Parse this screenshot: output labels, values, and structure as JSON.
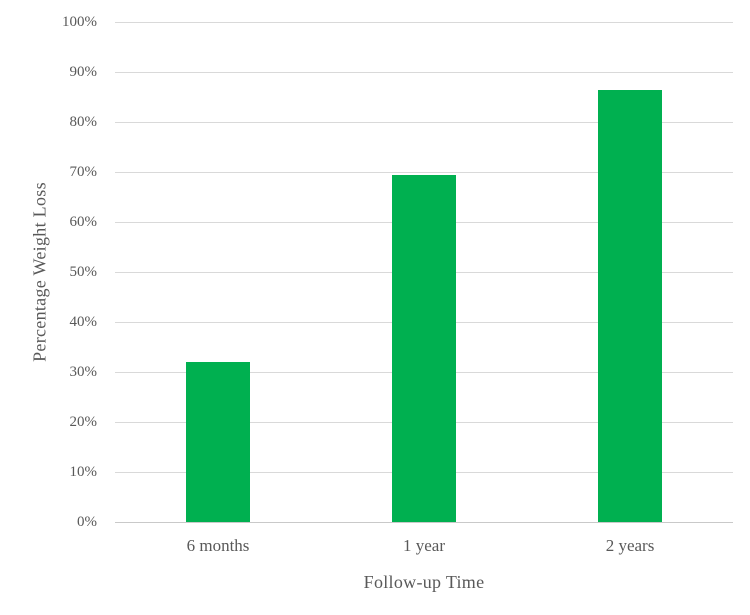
{
  "chart_data": {
    "type": "bar",
    "title": "",
    "categories": [
      "6 months",
      "1 year",
      "2 years"
    ],
    "values": [
      32,
      69.5,
      86.5
    ],
    "xlabel": "Follow-up Time",
    "ylabel": "Percentage Weight Loss",
    "ylim": [
      0,
      100
    ],
    "ytick_step": 10,
    "ytick_labels": [
      "0%",
      "10%",
      "20%",
      "30%",
      "40%",
      "50%",
      "60%",
      "70%",
      "80%",
      "90%",
      "100%"
    ],
    "grid": true,
    "legend": "none",
    "colors": {
      "bar": "#00B050",
      "gridline": "#D9D9D9",
      "axis_line": "#C9C9C9",
      "text": "#595959",
      "background": "#FFFFFF"
    }
  }
}
